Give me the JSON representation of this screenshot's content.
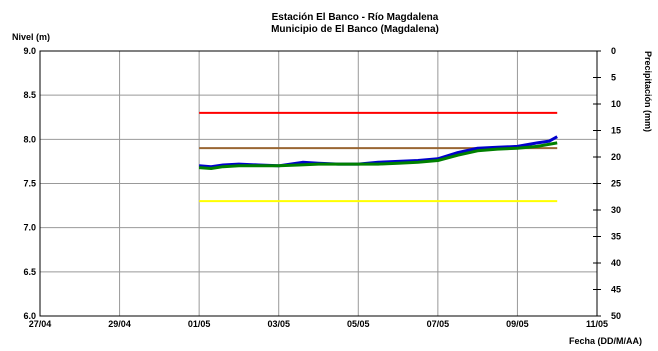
{
  "chart_data": {
    "type": "line",
    "title": "Estación El Banco - Río Magdalena",
    "subtitle": "Municipio de El Banco (Magdalena)",
    "ylabel": "Nivel (m)",
    "xlabel": "Fecha (DD/M/AA)",
    "y2label": "Precipitación (mm)",
    "ylim": [
      6.0,
      9.0
    ],
    "y_ticks": [
      "9.0",
      "8.5",
      "8.0",
      "7.5",
      "7.0",
      "6.5",
      "6.0"
    ],
    "y2lim": [
      0,
      50
    ],
    "y2_ticks": [
      "0",
      "5",
      "10",
      "15",
      "20",
      "25",
      "30",
      "35",
      "40",
      "45",
      "50"
    ],
    "x_ticks": [
      "27/04",
      "29/04",
      "01/05",
      "03/05",
      "05/05",
      "07/05",
      "09/05",
      "11/05"
    ],
    "xlim_days": [
      0,
      14
    ],
    "grid": true,
    "thresholds": [
      {
        "value": 8.3,
        "color": "#ff0000"
      },
      {
        "value": 7.9,
        "color": "#996633"
      },
      {
        "value": 7.3,
        "color": "#ffff00"
      }
    ],
    "series": [
      {
        "color": "#0000cc",
        "x": [
          4.0,
          4.3,
          4.6,
          5.0,
          5.5,
          6.0,
          6.3,
          6.6,
          7.0,
          7.5,
          8.0,
          8.5,
          9.0,
          9.5,
          10.0,
          10.5,
          11.0,
          11.5,
          12.0,
          12.5,
          12.8,
          13.0
        ],
        "y": [
          7.7,
          7.69,
          7.71,
          7.72,
          7.71,
          7.7,
          7.72,
          7.74,
          7.73,
          7.72,
          7.72,
          7.74,
          7.75,
          7.76,
          7.78,
          7.85,
          7.9,
          7.91,
          7.92,
          7.96,
          7.98,
          8.03
        ]
      },
      {
        "color": "#008000",
        "x": [
          4.0,
          4.3,
          4.6,
          5.0,
          5.5,
          6.0,
          6.5,
          7.0,
          7.5,
          8.0,
          8.5,
          9.0,
          9.5,
          10.0,
          10.5,
          11.0,
          11.5,
          12.0,
          12.5,
          13.0
        ],
        "y": [
          7.68,
          7.67,
          7.69,
          7.7,
          7.7,
          7.7,
          7.71,
          7.72,
          7.72,
          7.72,
          7.72,
          7.73,
          7.74,
          7.76,
          7.82,
          7.87,
          7.89,
          7.9,
          7.92,
          7.96
        ]
      }
    ]
  }
}
